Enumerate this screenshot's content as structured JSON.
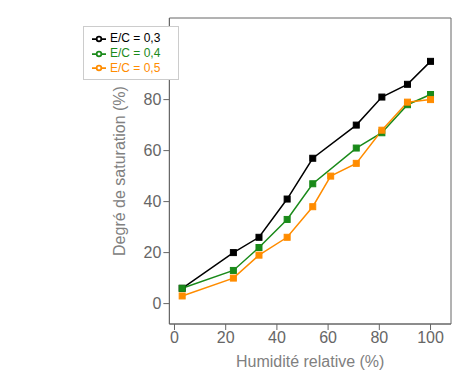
{
  "chart_data": {
    "type": "line",
    "xlabel": "Humidité relative (%)",
    "ylabel": "Degré de saturation (%)",
    "series": [
      {
        "name": "E/C = 0,3",
        "color": "#000000",
        "x": [
          3,
          23,
          33,
          44,
          54,
          71,
          81,
          91,
          100
        ],
        "values": [
          6,
          20,
          26,
          41,
          57,
          70,
          81,
          86,
          95
        ]
      },
      {
        "name": "E/C = 0,4",
        "color": "#1a8a1a",
        "x": [
          3,
          23,
          33,
          44,
          54,
          71,
          81,
          91,
          100
        ],
        "values": [
          6,
          13,
          22,
          33,
          47,
          61,
          67,
          78,
          82
        ]
      },
      {
        "name": "E/C = 0,5",
        "color": "#ff8c00",
        "x": [
          3,
          23,
          33,
          44,
          54,
          61,
          71,
          81,
          91,
          100
        ],
        "values": [
          3,
          10,
          19,
          26,
          38,
          50,
          55,
          68,
          79,
          80
        ]
      }
    ],
    "xlim": [
      -2,
      108
    ],
    "ylim": [
      -8,
      112
    ],
    "xticks": [
      0,
      20,
      40,
      60,
      80,
      100
    ],
    "yticks": [
      0,
      20,
      40,
      60,
      80,
      100
    ],
    "legend": "upper left",
    "marker": "square",
    "grid": false
  }
}
